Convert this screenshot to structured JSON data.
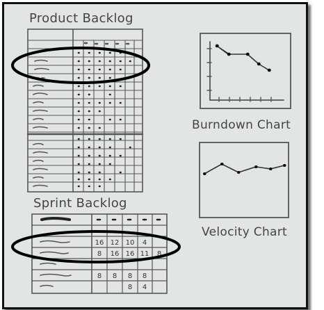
{
  "sketch": {
    "product_backlog": {
      "title": "Product Backlog"
    },
    "sprint_backlog": {
      "title": "Sprint Backlog",
      "rows": [
        [
          "16",
          "12",
          "10",
          "4",
          ""
        ],
        [
          "8",
          "16",
          "16",
          "11",
          "8"
        ],
        [
          "8",
          "8",
          "8",
          "8",
          ""
        ],
        [
          "",
          "",
          "8",
          "4",
          ""
        ]
      ]
    },
    "burndown_chart": {
      "title": "Burndown Chart"
    },
    "velocity_chart": {
      "title": "Velocity Chart"
    }
  },
  "colors": {
    "background": "#e2e5e6",
    "ink": "#444444",
    "frame": "#111111"
  }
}
